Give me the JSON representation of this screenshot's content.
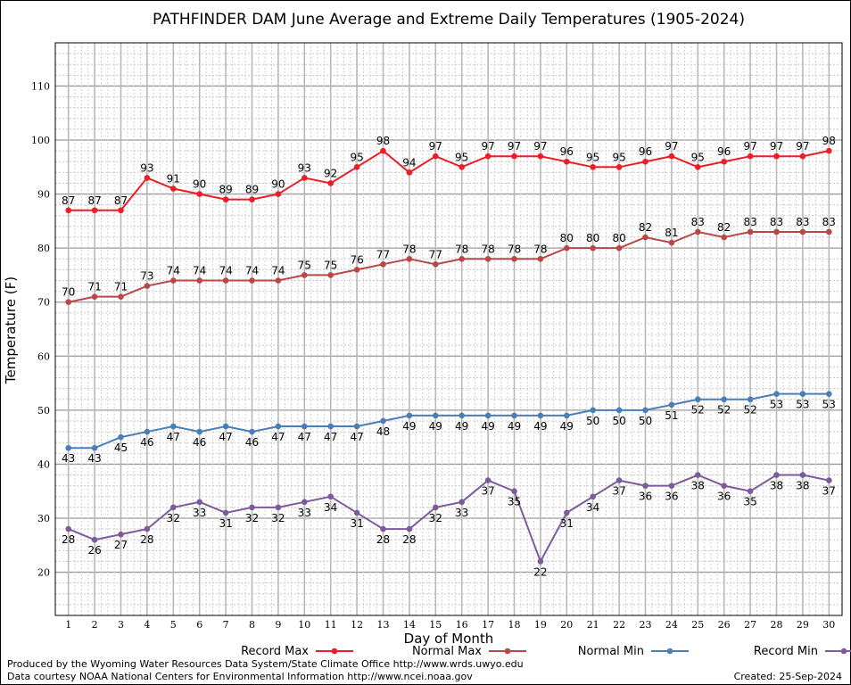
{
  "chart_data": {
    "type": "line",
    "title": "PATHFINDER DAM June Average and Extreme Daily Temperatures (1905-2024)",
    "xlabel": "Day of Month",
    "ylabel": "Temperature (F)",
    "x": [
      1,
      2,
      3,
      4,
      5,
      6,
      7,
      8,
      9,
      10,
      11,
      12,
      13,
      14,
      15,
      16,
      17,
      18,
      19,
      20,
      21,
      22,
      23,
      24,
      25,
      26,
      27,
      28,
      29,
      30
    ],
    "xlim": [
      0.5,
      30.5
    ],
    "ylim": [
      12,
      118
    ],
    "yticks": [
      20,
      30,
      40,
      50,
      60,
      70,
      80,
      90,
      100,
      110
    ],
    "grid": true,
    "legend_placement": "bottom",
    "series": [
      {
        "name": "Record Max",
        "color": "#ee1c25",
        "label_position": "above",
        "values": [
          87,
          87,
          87,
          93,
          91,
          90,
          89,
          89,
          90,
          93,
          92,
          95,
          98,
          94,
          97,
          95,
          97,
          97,
          97,
          96,
          95,
          95,
          96,
          97,
          95,
          96,
          97,
          97,
          97,
          98
        ]
      },
      {
        "name": "Normal Max",
        "color": "#b84848",
        "label_position": "above",
        "values": [
          70,
          71,
          71,
          73,
          74,
          74,
          74,
          74,
          74,
          75,
          75,
          76,
          77,
          78,
          77,
          78,
          78,
          78,
          78,
          80,
          80,
          80,
          82,
          81,
          83,
          82,
          83,
          83,
          83,
          83
        ]
      },
      {
        "name": "Normal Min",
        "color": "#4a7eb8",
        "label_position": "below",
        "values": [
          43,
          43,
          45,
          46,
          47,
          46,
          47,
          46,
          47,
          47,
          47,
          47,
          48,
          49,
          49,
          49,
          49,
          49,
          49,
          49,
          50,
          50,
          50,
          51,
          52,
          52,
          52,
          53,
          53,
          53
        ]
      },
      {
        "name": "Record Min",
        "color": "#7e5a9b",
        "label_position": "below",
        "values": [
          28,
          26,
          27,
          28,
          32,
          33,
          31,
          32,
          32,
          33,
          34,
          31,
          28,
          28,
          32,
          33,
          37,
          35,
          22,
          31,
          34,
          37,
          36,
          36,
          38,
          36,
          35,
          38,
          38,
          37
        ]
      }
    ]
  },
  "footer": {
    "produced_by": "Produced by the Wyoming Water Resources Data System/State Climate Office http://www.wrds.uwyo.edu",
    "courtesy": "Data courtesy NOAA National Centers for Environmental Information http://www.ncei.noaa.gov",
    "created": "Created:  25-Sep-2024"
  }
}
